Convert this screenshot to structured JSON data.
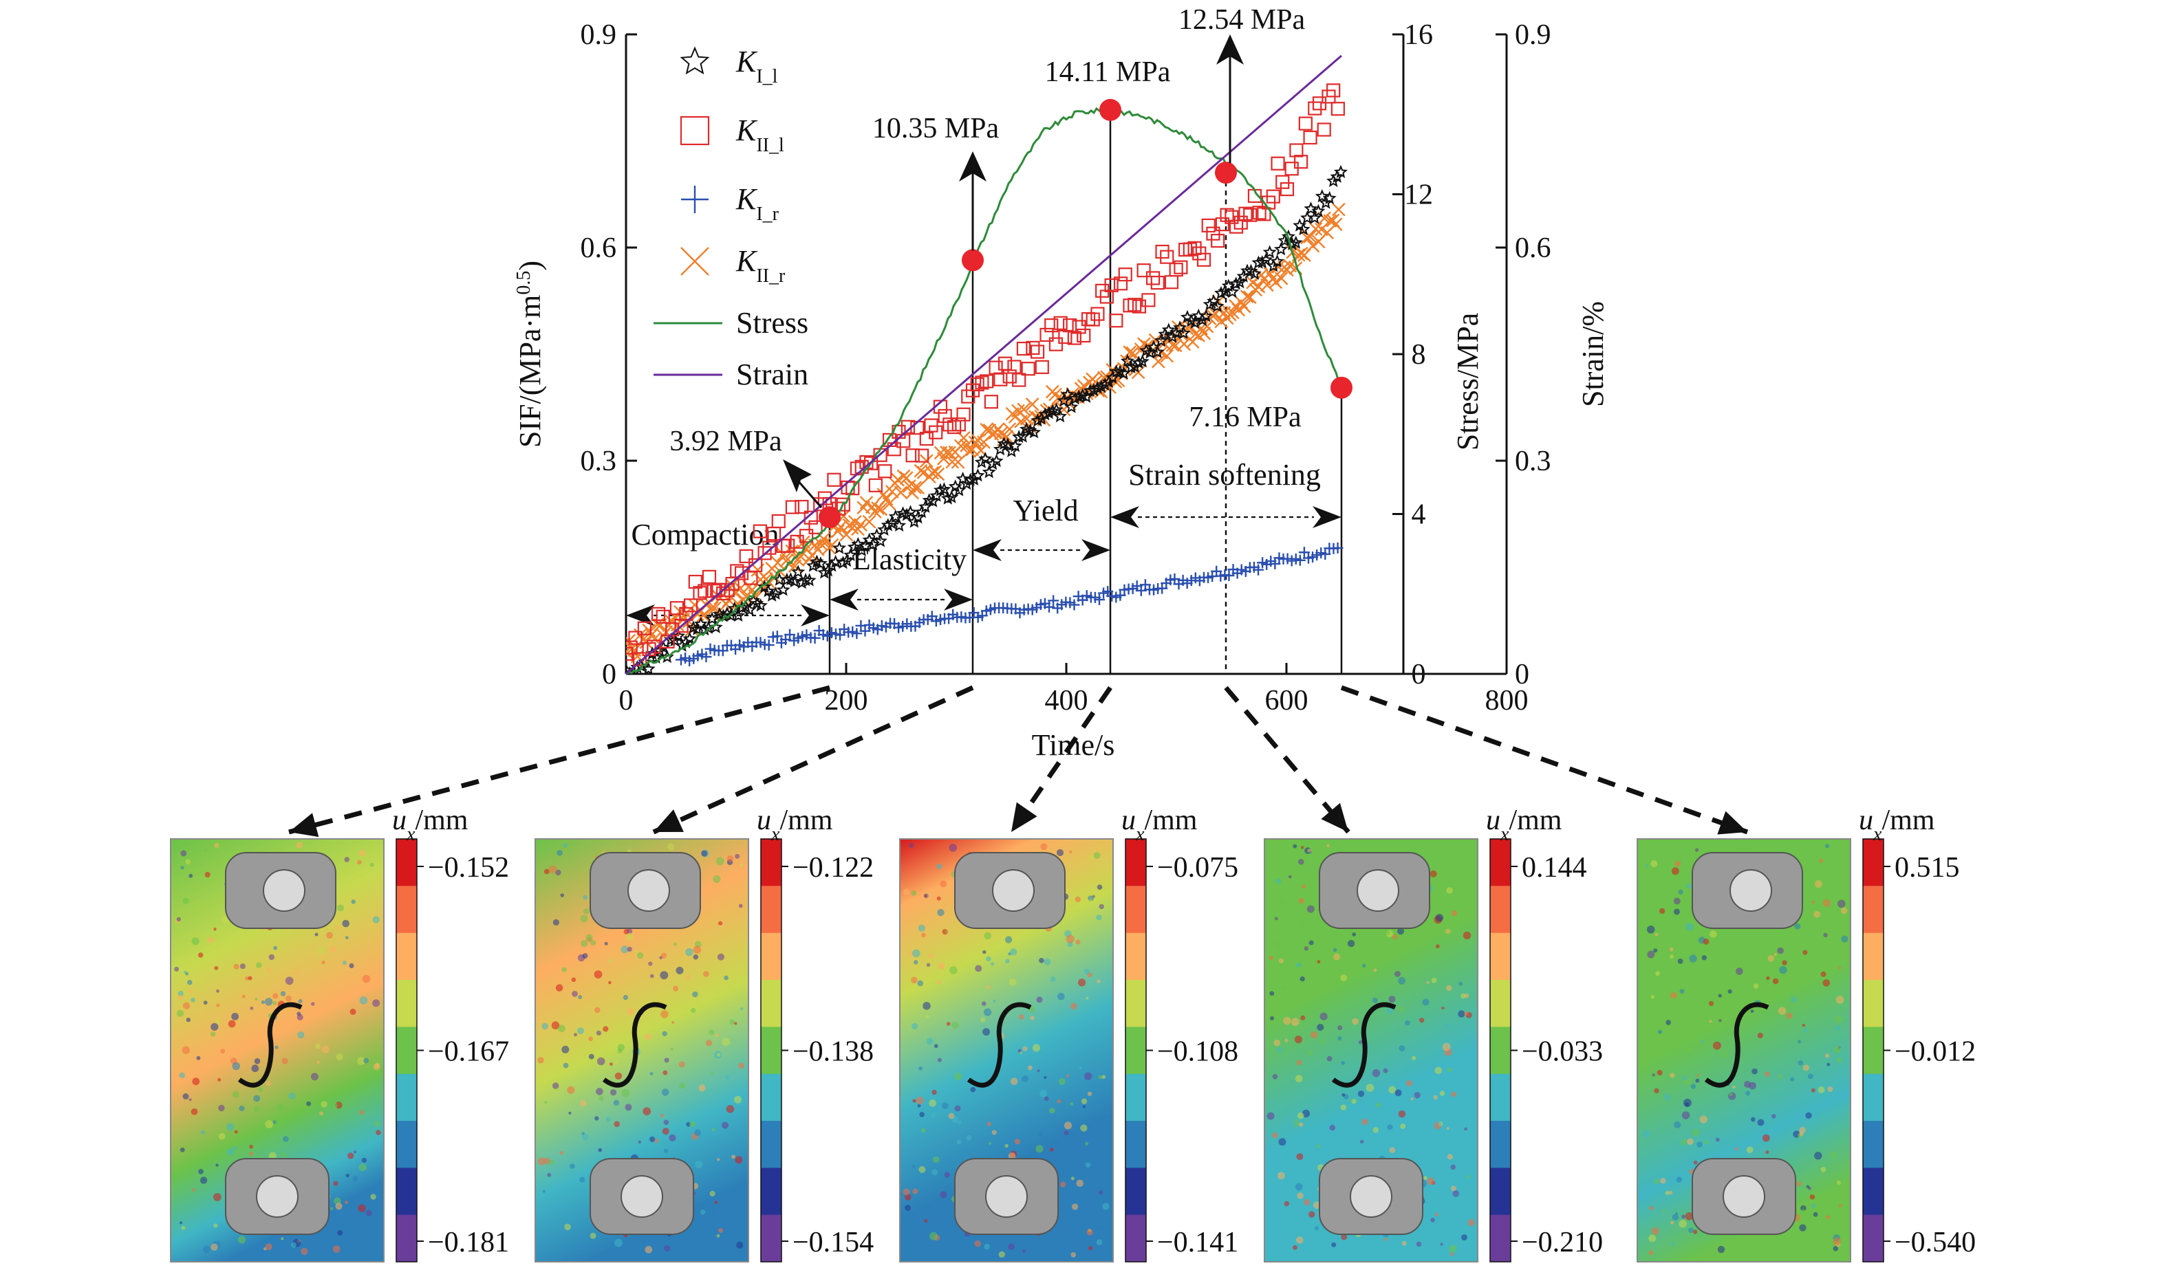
{
  "chart_data": {
    "type": "scatter",
    "title": "",
    "xlabel": "Time/s",
    "ylabel_left": "SIF/(MPa·m0.5)",
    "ylabel_stress": "Stress/MPa",
    "ylabel_strain": "Strain/%",
    "xlim": [
      0,
      800
    ],
    "ylim_sif": [
      0,
      0.9
    ],
    "ylim_stress": [
      0,
      16
    ],
    "ylim_strain": [
      0,
      0.9
    ],
    "x_ticks": [
      "0",
      "200",
      "400",
      "600",
      "800"
    ],
    "sif_ticks": [
      "0",
      "0.3",
      "0.6",
      "0.9"
    ],
    "stress_ticks": [
      "0",
      "4",
      "8",
      "12",
      "16"
    ],
    "strain_ticks": [
      "0",
      "0.3",
      "0.6",
      "0.9"
    ],
    "legend_position": "top-left",
    "series": [
      {
        "name": "K_I_l",
        "main": "K",
        "sub": "I_l",
        "marker": "star",
        "color": "#111111",
        "x": [
          0,
          100,
          200,
          300,
          400,
          500,
          600,
          650
        ],
        "y": [
          0.0,
          0.09,
          0.17,
          0.26,
          0.38,
          0.48,
          0.6,
          0.7
        ]
      },
      {
        "name": "K_II_l",
        "main": "K",
        "sub": "II_l",
        "marker": "square",
        "color": "#e02a2a",
        "x": [
          0,
          100,
          200,
          300,
          400,
          500,
          600,
          650
        ],
        "y": [
          0.03,
          0.15,
          0.26,
          0.37,
          0.48,
          0.58,
          0.7,
          0.83
        ]
      },
      {
        "name": "K_I_r",
        "main": "K",
        "sub": "I_r",
        "marker": "plus",
        "color": "#2a4fb0",
        "x": [
          50,
          100,
          200,
          300,
          400,
          500,
          600,
          650
        ],
        "y": [
          0.02,
          0.04,
          0.06,
          0.08,
          0.1,
          0.13,
          0.16,
          0.18
        ]
      },
      {
        "name": "K_II_r",
        "main": "K",
        "sub": "II_r",
        "marker": "x",
        "color": "#f07f2a",
        "x": [
          0,
          100,
          200,
          300,
          400,
          500,
          600,
          650
        ],
        "y": [
          0.03,
          0.11,
          0.21,
          0.31,
          0.39,
          0.47,
          0.57,
          0.66
        ]
      },
      {
        "name": "Stress",
        "marker": "line",
        "color": "#2e8b3a",
        "axis": "stress",
        "x": [
          0,
          50,
          100,
          150,
          190,
          250,
          300,
          320,
          350,
          380,
          410,
          440,
          470,
          500,
          530,
          560,
          600,
          630,
          650
        ],
        "y": [
          0,
          0.6,
          1.6,
          2.8,
          3.92,
          6.4,
          9.3,
          10.6,
          12.4,
          13.6,
          14.05,
          14.11,
          13.95,
          13.6,
          13.1,
          12.5,
          11.0,
          8.5,
          7.16
        ]
      },
      {
        "name": "Strain",
        "marker": "line",
        "color": "#6a2a9a",
        "axis": "strain",
        "x": [
          0,
          650
        ],
        "y": [
          0,
          0.87
        ]
      }
    ],
    "key_points": [
      {
        "x": 185,
        "stress": 3.92,
        "label": "3.92 MPa"
      },
      {
        "x": 315,
        "stress": 10.35,
        "label": "10.35 MPa"
      },
      {
        "x": 440,
        "stress": 14.11,
        "label": "14.11 MPa"
      },
      {
        "x": 545,
        "stress": 12.54,
        "label": "12.54 MPa"
      },
      {
        "x": 650,
        "stress": 7.16,
        "label": "7.16 MPa"
      }
    ],
    "stages": [
      "Compaction",
      "Elasticity",
      "Yield",
      "Strain softening"
    ],
    "contour_panels": [
      {
        "label_var": "u",
        "label_sub": "x",
        "label_unit": "/mm",
        "ticks": [
          "−0.152",
          "−0.167",
          "−0.181"
        ]
      },
      {
        "label_var": "u",
        "label_sub": "x",
        "label_unit": "/mm",
        "ticks": [
          "−0.122",
          "−0.138",
          "−0.154"
        ]
      },
      {
        "label_var": "u",
        "label_sub": "x",
        "label_unit": "/mm",
        "ticks": [
          "−0.075",
          "−0.108",
          "−0.141"
        ]
      },
      {
        "label_var": "u",
        "label_sub": "x",
        "label_unit": "/mm",
        "ticks": [
          "0.144",
          "−0.033",
          "−0.210"
        ]
      },
      {
        "label_var": "u",
        "label_sub": "x",
        "label_unit": "/mm",
        "ticks": [
          "0.515",
          "−0.012",
          "−0.540"
        ]
      }
    ],
    "colorbar_colors": [
      "#d7191c",
      "#f46d43",
      "#fdae61",
      "#c6d94f",
      "#6cc24a",
      "#41b6c4",
      "#2c7fb8",
      "#253494",
      "#6a3d9a"
    ]
  }
}
